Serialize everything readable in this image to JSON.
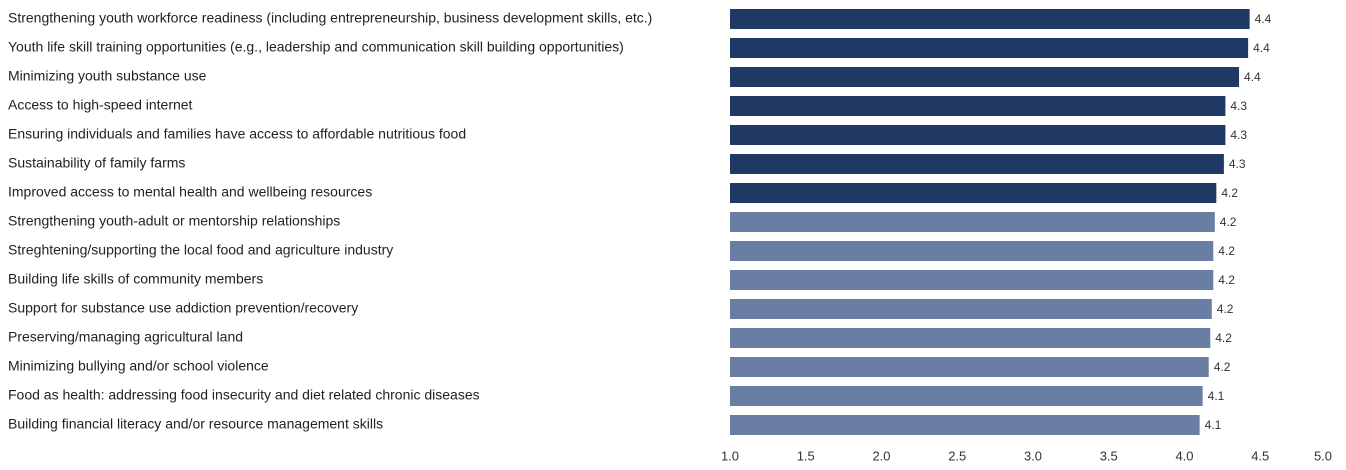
{
  "chart_data": {
    "type": "barh",
    "categories": [
      "Strengthening youth workforce readiness (including entrepreneurship, business development skills, etc.)",
      "Youth life skill training opportunities (e.g., leadership and communication skill building opportunities)",
      "Minimizing youth substance use",
      "Access to high-speed internet",
      "Ensuring individuals and families have access to affordable nutritious food",
      "Sustainability of family farms",
      "Improved access to mental health and wellbeing resources",
      "Strengthening youth-adult or mentorship relationships",
      "Streghtening/supporting the local food and agriculture industry",
      "Building life skills of community members",
      "Support for substance use addiction prevention/recovery",
      "Preserving/managing agricultural land",
      "Minimizing bullying and/or school violence",
      "Food as health: addressing food insecurity and diet related chronic diseases",
      "Building financial literacy and/or resource management skills"
    ],
    "values": [
      4.43,
      4.42,
      4.36,
      4.27,
      4.27,
      4.26,
      4.21,
      4.2,
      4.19,
      4.19,
      4.18,
      4.17,
      4.16,
      4.12,
      4.1
    ],
    "value_labels": [
      "4.4",
      "4.4",
      "4.4",
      "4.3",
      "4.3",
      "4.3",
      "4.2",
      "4.2",
      "4.2",
      "4.2",
      "4.2",
      "4.2",
      "4.2",
      "4.1",
      "4.1"
    ],
    "colors": [
      "#1f3864",
      "#1f3864",
      "#1f3864",
      "#1f3864",
      "#1f3864",
      "#1f3864",
      "#1f3864",
      "#6a7ea3",
      "#6a7ea3",
      "#6a7ea3",
      "#6a7ea3",
      "#6a7ea3",
      "#6a7ea3",
      "#6a7ea3",
      "#6a7ea3"
    ],
    "xlim": [
      1,
      5
    ],
    "xticks": [
      {
        "value": 1,
        "label": "1.0"
      },
      {
        "value": 1.5,
        "label": "1.5"
      },
      {
        "value": 2,
        "label": "2.0"
      },
      {
        "value": 2.5,
        "label": "2.5"
      },
      {
        "value": 3,
        "label": "3.0"
      },
      {
        "value": 3.5,
        "label": "3.5"
      },
      {
        "value": 4,
        "label": "4.0"
      },
      {
        "value": 4.5,
        "label": "4.5"
      },
      {
        "value": 5,
        "label": "5.0"
      }
    ]
  }
}
